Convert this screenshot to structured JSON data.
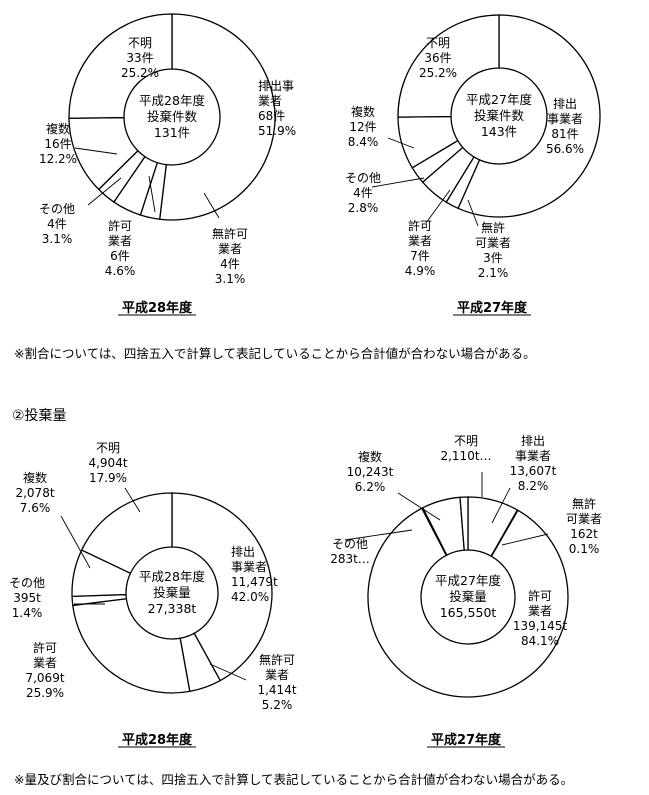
{
  "section_title": "②投棄量",
  "note_count": "※割合については、四捨五入で計算して表記していることから合計値が合わない場合がある。",
  "note_volume": "※量及び割合については、四捨五入で計算して表記していることから合計値が合わない場合がある。",
  "chart_data": [
    {
      "type": "pie",
      "title": "平成28年度",
      "center": [
        "平成28年度",
        "投棄件数",
        "131件"
      ],
      "series": [
        {
          "name": "排出事業者",
          "value": 68,
          "label": [
            "排出事",
            "業者",
            "68件",
            "51.9%"
          ]
        },
        {
          "name": "無許可業者",
          "value": 4,
          "label": [
            "無許可",
            "業者",
            "4件",
            "3.1%"
          ]
        },
        {
          "name": "許可業者",
          "value": 6,
          "label": [
            "許可",
            "業者",
            "6件",
            "4.6%"
          ]
        },
        {
          "name": "その他",
          "value": 4,
          "label": [
            "その他",
            "4件",
            "3.1%"
          ]
        },
        {
          "name": "複数",
          "value": 16,
          "label": [
            "複数",
            "16件",
            "12.2%"
          ]
        },
        {
          "name": "不明",
          "value": 33,
          "label": [
            "不明",
            "33件",
            "25.2%"
          ]
        }
      ]
    },
    {
      "type": "pie",
      "title": "平成27年度",
      "center": [
        "平成27年度",
        "投棄件数",
        "143件"
      ],
      "series": [
        {
          "name": "排出事業者",
          "value": 81,
          "label": [
            "排出",
            "事業者",
            "81件",
            "56.6%"
          ]
        },
        {
          "name": "無許可業者",
          "value": 3,
          "label": [
            "無許",
            "可業者",
            "3件",
            "2.1%"
          ]
        },
        {
          "name": "許可業者",
          "value": 7,
          "label": [
            "許可",
            "業者",
            "7件",
            "4.9%"
          ]
        },
        {
          "name": "その他",
          "value": 4,
          "label": [
            "その他",
            "4件",
            "2.8%"
          ]
        },
        {
          "name": "複数",
          "value": 12,
          "label": [
            "複数",
            "12件",
            "8.4%"
          ]
        },
        {
          "name": "不明",
          "value": 36,
          "label": [
            "不明",
            "36件",
            "25.2%"
          ]
        }
      ]
    },
    {
      "type": "pie",
      "title": "平成28年度",
      "center": [
        "平成28年度",
        "投棄量",
        "27,338t"
      ],
      "series": [
        {
          "name": "排出事業者",
          "value": 11479,
          "label": [
            "排出",
            "事業者",
            "11,479t",
            "42.0%"
          ]
        },
        {
          "name": "無許可業者",
          "value": 1414,
          "label": [
            "無許可",
            "業者",
            "1,414t",
            "5.2%"
          ]
        },
        {
          "name": "許可業者",
          "value": 7069,
          "label": [
            "許可",
            "業者",
            "7,069t",
            "25.9%"
          ]
        },
        {
          "name": "その他",
          "value": 395,
          "label": [
            "その他",
            "395t",
            "1.4%"
          ]
        },
        {
          "name": "複数",
          "value": 2078,
          "label": [
            "複数",
            "2,078t",
            "7.6%"
          ]
        },
        {
          "name": "不明",
          "value": 4904,
          "label": [
            "不明",
            "4,904t",
            "17.9%"
          ]
        }
      ]
    },
    {
      "type": "pie",
      "title": "平成27年度",
      "center": [
        "平成27年度",
        "投棄量",
        "165,550t"
      ],
      "series": [
        {
          "name": "排出事業者",
          "value": 13607,
          "label": [
            "排出",
            "事業者",
            "13,607t",
            "8.2%"
          ]
        },
        {
          "name": "無許可業者",
          "value": 162,
          "label": [
            "無許",
            "可業者",
            "162t",
            "0.1%"
          ]
        },
        {
          "name": "許可業者",
          "value": 139145,
          "label": [
            "許可",
            "業者",
            "139,145t",
            "84.1%"
          ]
        },
        {
          "name": "その他",
          "value": 283,
          "label": [
            "その他",
            "283t…"
          ]
        },
        {
          "name": "複数",
          "value": 10243,
          "label": [
            "複数",
            "10,243t",
            "6.2%"
          ]
        },
        {
          "name": "不明",
          "value": 2110,
          "label": [
            "不明",
            "2,110t…"
          ]
        }
      ]
    }
  ]
}
